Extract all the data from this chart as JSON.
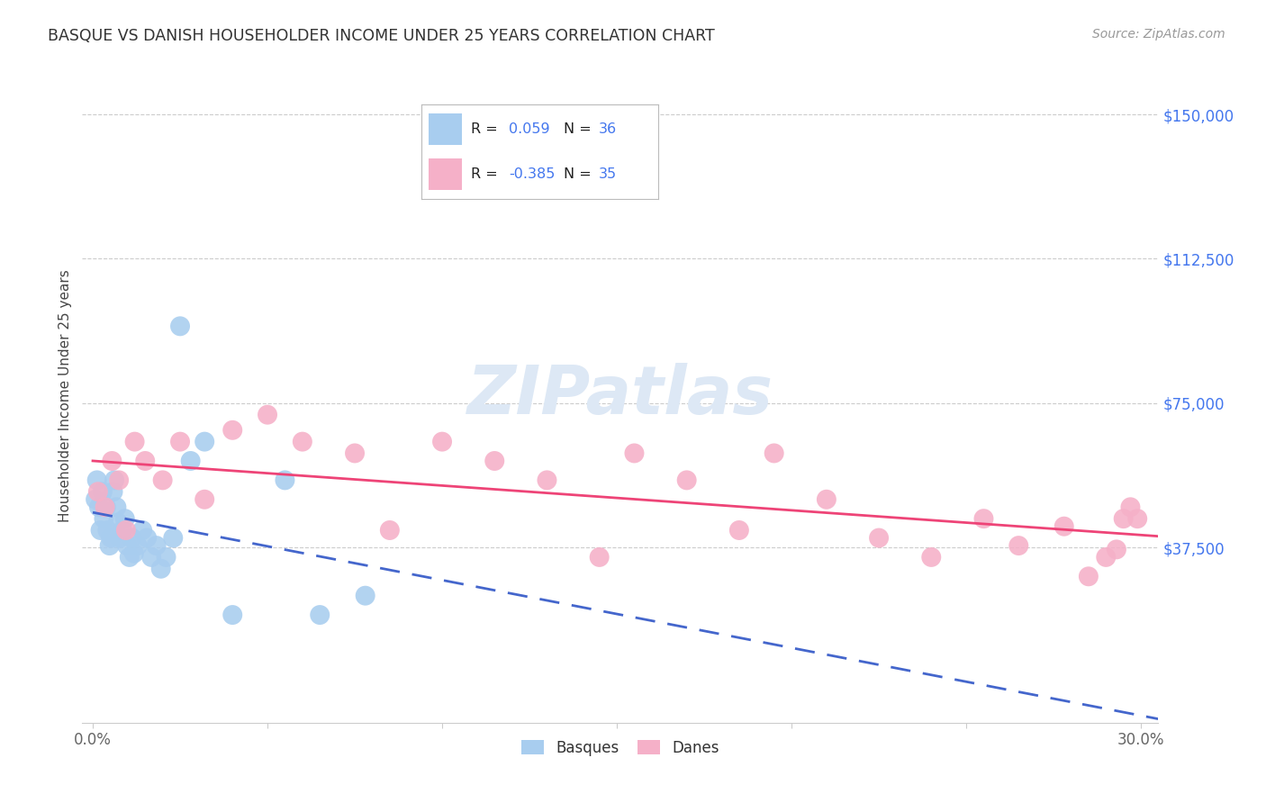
{
  "title": "BASQUE VS DANISH HOUSEHOLDER INCOME UNDER 25 YEARS CORRELATION CHART",
  "source": "Source: ZipAtlas.com",
  "ylabel": "Householder Income Under 25 years",
  "basques_R": "0.059",
  "basques_N": "36",
  "danes_R": "-0.385",
  "danes_N": "35",
  "basques_color": "#A8CDEF",
  "danes_color": "#F5B0C8",
  "basques_line_color": "#4466CC",
  "danes_line_color": "#EE4477",
  "r_n_color": "#4477EE",
  "label_color": "#222222",
  "title_color": "#333333",
  "source_color": "#999999",
  "grid_color": "#CCCCCC",
  "ytick_color": "#4477EE",
  "xtick_color": "#666666",
  "watermark_color": "#DDE8F5",
  "legend_border_color": "#BBBBBB",
  "basques_x": [
    0.08,
    0.12,
    0.18,
    0.22,
    0.28,
    0.32,
    0.38,
    0.42,
    0.48,
    0.52,
    0.58,
    0.62,
    0.68,
    0.72,
    0.78,
    0.85,
    0.92,
    0.98,
    1.05,
    1.12,
    1.18,
    1.28,
    1.42,
    1.55,
    1.68,
    1.82,
    1.95,
    2.1,
    2.3,
    2.5,
    2.8,
    3.2,
    4.0,
    5.5,
    6.5,
    7.8
  ],
  "basques_y": [
    50000,
    55000,
    48000,
    42000,
    52000,
    45000,
    48000,
    42000,
    38000,
    40000,
    52000,
    55000,
    48000,
    44000,
    40000,
    42000,
    45000,
    38000,
    35000,
    40000,
    36000,
    38000,
    42000,
    40000,
    35000,
    38000,
    32000,
    35000,
    40000,
    95000,
    60000,
    65000,
    20000,
    55000,
    20000,
    25000
  ],
  "danes_x": [
    0.15,
    0.35,
    0.55,
    0.75,
    0.95,
    1.2,
    1.5,
    2.0,
    2.5,
    3.2,
    4.0,
    5.0,
    6.0,
    7.5,
    8.5,
    10.0,
    11.5,
    13.0,
    14.5,
    15.5,
    17.0,
    18.5,
    19.5,
    21.0,
    22.5,
    24.0,
    25.5,
    26.5,
    27.8,
    28.5,
    29.0,
    29.3,
    29.5,
    29.7,
    29.9
  ],
  "danes_y": [
    52000,
    48000,
    60000,
    55000,
    42000,
    65000,
    60000,
    55000,
    65000,
    50000,
    68000,
    72000,
    65000,
    62000,
    42000,
    65000,
    60000,
    55000,
    35000,
    62000,
    55000,
    42000,
    62000,
    50000,
    40000,
    35000,
    45000,
    38000,
    43000,
    30000,
    35000,
    37000,
    45000,
    48000,
    45000
  ],
  "xlim": [
    -0.3,
    30.5
  ],
  "ylim": [
    -8000,
    162000
  ],
  "yticks": [
    0,
    37500,
    75000,
    112500,
    150000
  ],
  "ytick_labels": [
    "",
    "$37,500",
    "$75,000",
    "$112,500",
    "$150,000"
  ],
  "xticks": [
    0,
    5,
    10,
    15,
    20,
    25,
    30
  ],
  "xtick_labels": [
    "0.0%",
    "",
    "",
    "",
    "",
    "",
    "30.0%"
  ]
}
